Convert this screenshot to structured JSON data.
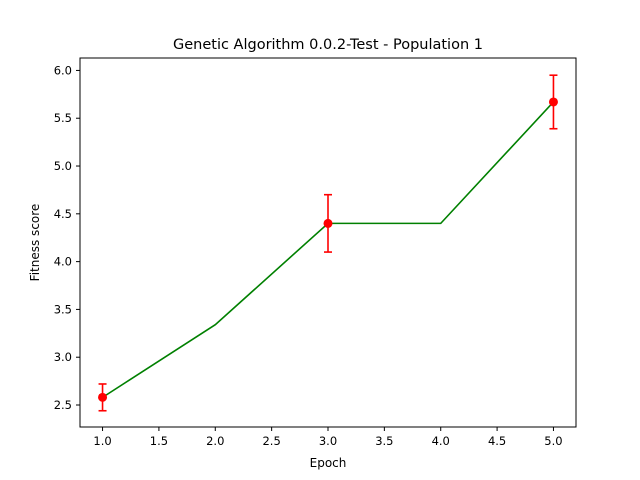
{
  "chart_data": {
    "type": "line",
    "title": "Genetic Algorithm 0.0.2-Test - Population 1",
    "xlabel": "Epoch",
    "ylabel": "Fitness score",
    "xlim": [
      0.8,
      5.2
    ],
    "ylim": [
      2.27,
      6.13
    ],
    "x_ticks": [
      1.0,
      1.5,
      2.0,
      2.5,
      3.0,
      3.5,
      4.0,
      4.5,
      5.0
    ],
    "x_tick_labels": [
      "1.0",
      "1.5",
      "2.0",
      "2.5",
      "3.0",
      "3.5",
      "4.0",
      "4.5",
      "5.0"
    ],
    "y_ticks": [
      2.5,
      3.0,
      3.5,
      4.0,
      4.5,
      5.0,
      5.5,
      6.0
    ],
    "y_tick_labels": [
      "2.5",
      "3.0",
      "3.5",
      "4.0",
      "4.5",
      "5.0",
      "5.5",
      "6.0"
    ],
    "grid": false,
    "line": {
      "color": "#008000",
      "x": [
        1,
        2,
        3,
        4,
        5
      ],
      "y": [
        2.58,
        3.34,
        4.4,
        4.4,
        5.67
      ]
    },
    "error_points": {
      "color": "#ff0000",
      "x": [
        1,
        3,
        5
      ],
      "y": [
        2.58,
        4.4,
        5.67
      ],
      "err": [
        0.14,
        0.3,
        0.28
      ]
    }
  }
}
